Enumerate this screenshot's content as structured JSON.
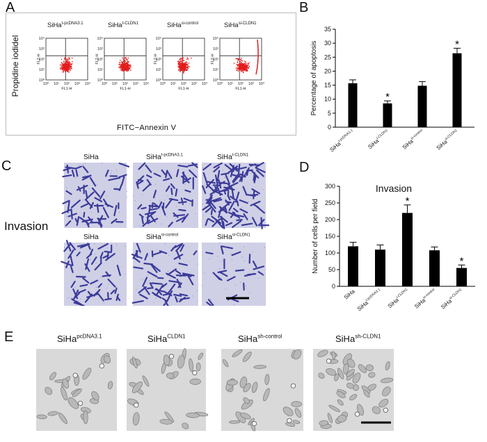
{
  "panels": {
    "A": "A",
    "B": "B",
    "C": "C",
    "D": "D",
    "E": "E"
  },
  "panelA": {
    "ylabel": "Propidine iodidel",
    "xlabel": "FITC−Annexin V",
    "plots": [
      {
        "base": "SiHa",
        "sup": "t-pcDNA3.1"
      },
      {
        "base": "SiHa",
        "sup": "t-CLDN1"
      },
      {
        "base": "SiHa",
        "sup": "si-control"
      },
      {
        "base": "SiHa",
        "sup": "si-CLDN1"
      }
    ],
    "axis_y": "FL2-H",
    "axis_x": "FL1-H",
    "ticks": [
      "10⁰",
      "10¹",
      "10²",
      "10³",
      "10⁴"
    ]
  },
  "panelC": {
    "side_label": "Invasion",
    "top_row": [
      {
        "base": "SiHa",
        "sup": ""
      },
      {
        "base": "SiHa",
        "sup": "t-pcDNA3.1"
      },
      {
        "base": "SiHa",
        "sup": "t-CLDN1"
      }
    ],
    "bottom_row": [
      {
        "base": "SiHa",
        "sup": ""
      },
      {
        "base": "SiHa",
        "sup": "si-control"
      },
      {
        "base": "SiHa",
        "sup": "si-CLDN1"
      }
    ]
  },
  "panelE": {
    "labels": [
      {
        "base": "SiHa",
        "sup": "pcDNA3.1"
      },
      {
        "base": "SiHa",
        "sup": "CLDN1"
      },
      {
        "base": "SiHa",
        "sup": "sh-control"
      },
      {
        "base": "SiHa",
        "sup": "sh-CLDN1"
      }
    ]
  },
  "chart_data": [
    {
      "id": "B",
      "type": "bar",
      "title": "",
      "xlabel": "",
      "ylabel": "Percentage of apoptosis",
      "ylim": [
        0,
        35
      ],
      "yticks": [
        0,
        5,
        10,
        15,
        20,
        25,
        30,
        35
      ],
      "categories": [
        {
          "base": "SiHa",
          "sup": "t-pcDNA3.1"
        },
        {
          "base": "SiHa",
          "sup": "t-CLDN1"
        },
        {
          "base": "SiHa",
          "sup": "si-control"
        },
        {
          "base": "SiHa",
          "sup": "si-CLDN1"
        }
      ],
      "values": [
        15.7,
        8.5,
        14.8,
        26.4
      ],
      "errors": [
        1.2,
        0.9,
        1.5,
        1.8
      ],
      "significant": [
        "",
        "*",
        "",
        "*"
      ]
    },
    {
      "id": "D",
      "type": "bar",
      "title": "Invasion",
      "xlabel": "",
      "ylabel": "Number of cells per field",
      "ylim": [
        0,
        300
      ],
      "yticks": [
        0,
        50,
        100,
        150,
        200,
        250,
        300
      ],
      "categories": [
        {
          "base": "SiHa",
          "sup": ""
        },
        {
          "base": "SiHa",
          "sup": "t-pcDNA3.1"
        },
        {
          "base": "SiHa",
          "sup": "t-CLDN1"
        },
        {
          "base": "SiHa",
          "sup": "si-control"
        },
        {
          "base": "SiHa",
          "sup": "si-CLDN1"
        }
      ],
      "values": [
        120,
        110,
        220,
        108,
        55
      ],
      "errors": [
        12,
        14,
        24,
        10,
        9
      ],
      "significant": [
        "",
        "",
        "*",
        "",
        "*"
      ]
    }
  ]
}
